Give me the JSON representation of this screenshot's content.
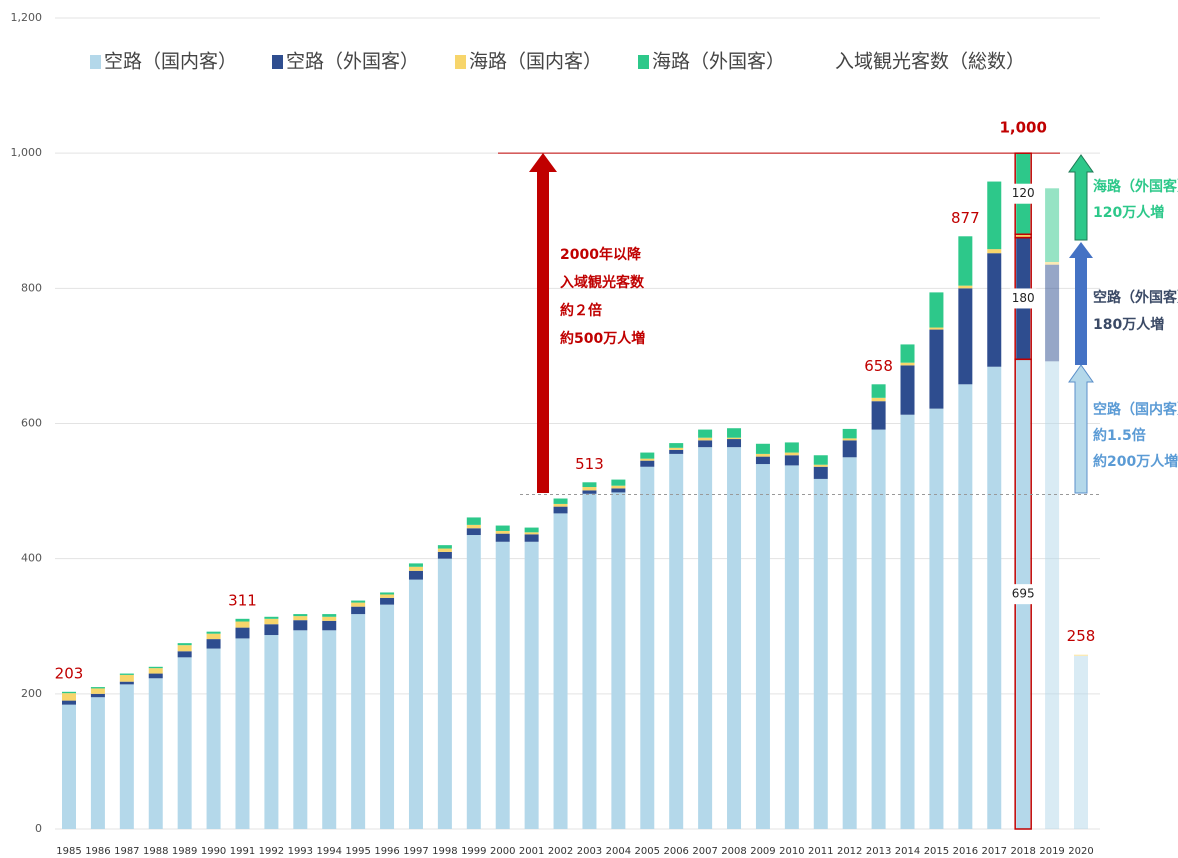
{
  "chart_data": {
    "type": "stacked_bar",
    "categories": [
      "1985",
      "1986",
      "1987",
      "1988",
      "1989",
      "1990",
      "1991",
      "1992",
      "1993",
      "1994",
      "1995",
      "1996",
      "1997",
      "1998",
      "1999",
      "2000",
      "2001",
      "2002",
      "2003",
      "2004",
      "2005",
      "2006",
      "2007",
      "2008",
      "2009",
      "2010",
      "2011",
      "2012",
      "2013",
      "2014",
      "2015",
      "2016",
      "2017",
      "2018",
      "2019",
      "2020"
    ],
    "series": [
      {
        "name": "空路（国内客）",
        "color": "#b4d8ea",
        "values": [
          184,
          195,
          214,
          223,
          254,
          267,
          282,
          287,
          294,
          294,
          318,
          332,
          369,
          400,
          435,
          425,
          425,
          467,
          496,
          498,
          536,
          555,
          565,
          565,
          540,
          538,
          518,
          550,
          591,
          613,
          622,
          658,
          684,
          695,
          692,
          256
        ]
      },
      {
        "name": "空路（外国客）",
        "color": "#2e4d8f",
        "values": [
          6,
          5,
          4,
          7,
          9,
          14,
          16,
          16,
          15,
          14,
          11,
          10,
          13,
          10,
          10,
          12,
          11,
          10,
          5,
          6,
          9,
          6,
          10,
          12,
          11,
          15,
          18,
          25,
          42,
          73,
          117,
          142,
          168,
          180,
          143,
          0
        ]
      },
      {
        "name": "海路（国内客）",
        "color": "#f7d56b",
        "values": [
          11,
          8,
          10,
          8,
          9,
          8,
          9,
          8,
          6,
          6,
          6,
          5,
          6,
          5,
          5,
          4,
          3,
          4,
          5,
          4,
          3,
          3,
          4,
          2,
          4,
          4,
          3,
          3,
          5,
          4,
          3,
          4,
          6,
          5,
          4,
          2
        ]
      },
      {
        "name": "海路（外国客）",
        "color": "#2dc88a",
        "values": [
          2,
          2,
          2,
          2,
          3,
          3,
          4,
          3,
          3,
          4,
          3,
          3,
          5,
          5,
          11,
          8,
          7,
          8,
          7,
          9,
          9,
          7,
          12,
          14,
          15,
          15,
          14,
          14,
          20,
          27,
          52,
          73,
          100,
          120,
          109,
          0
        ]
      }
    ],
    "total_legend": {
      "name": "入域観光客数（総数）",
      "color": "#c00000"
    },
    "totals": [
      {
        "x": "1985",
        "value": 203
      },
      {
        "x": "1991",
        "value": 311
      },
      {
        "x": "2003",
        "value": 513
      },
      {
        "x": "2013",
        "value": 658
      },
      {
        "x": "2016",
        "value": 877
      },
      {
        "x": "2018",
        "value": 1000,
        "label": "1,000"
      },
      {
        "x": "2020",
        "value": 258
      }
    ],
    "highlight": "2018",
    "faded_categories": [
      "2019",
      "2020"
    ],
    "reference_lines": [
      1000,
      495
    ],
    "annotations": {
      "total_growth": [
        "2000年以降",
        "入域観光客数",
        "約２倍",
        "約500万人増"
      ],
      "sea_foreign": [
        "海路（外国客）",
        "120万人増"
      ],
      "air_foreign": [
        "空路（外国客）",
        "180万人増"
      ],
      "air_domestic": [
        "空路（国内客）",
        "約1.5倍",
        "約200万人増"
      ]
    },
    "ylim": [
      0,
      1200
    ],
    "yticks": [
      0,
      200,
      400,
      600,
      800,
      {
        "value": 1000,
        "label": "1,000"
      },
      {
        "value": 1200,
        "label": "1,200"
      }
    ],
    "grid": true
  }
}
